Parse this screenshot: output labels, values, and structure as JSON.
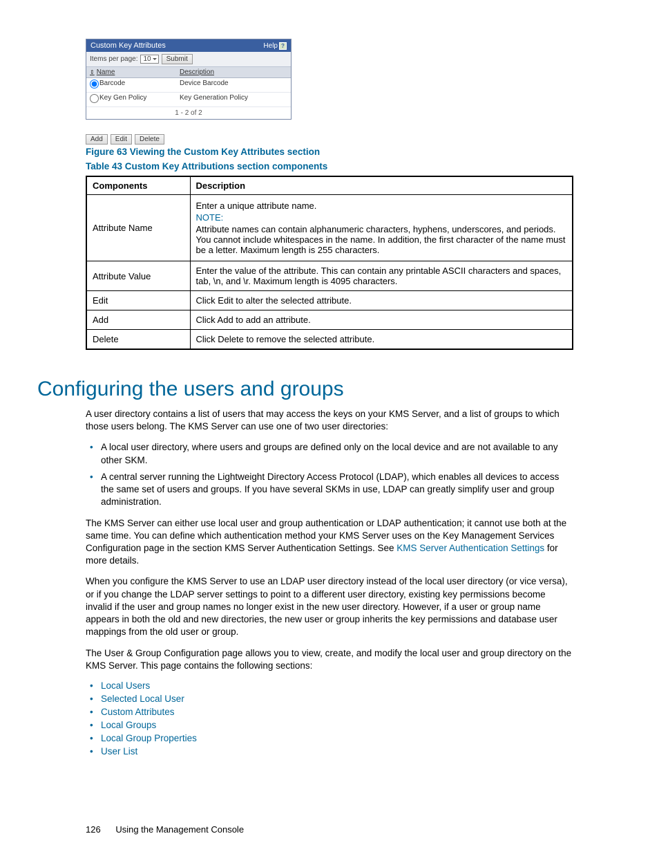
{
  "panel": {
    "title": "Custom Key Attributes",
    "help_label": "Help",
    "items_label": "Items per page:",
    "items_value": "10",
    "submit_label": "Submit",
    "col_name": "Name",
    "col_desc": "Description",
    "rows": [
      {
        "name": "Barcode",
        "desc": "Device Barcode",
        "selected": true
      },
      {
        "name": "Key Gen Policy",
        "desc": "Key Generation Policy",
        "selected": false
      }
    ],
    "pager": "1 - 2 of 2",
    "btn_add": "Add",
    "btn_edit": "Edit",
    "btn_delete": "Delete"
  },
  "figure_caption": "Figure 63 Viewing the Custom Key Attributes section",
  "table_caption": "Table 43 Custom Key Attributions section components",
  "table": {
    "head_components": "Components",
    "head_description": "Description",
    "rows": {
      "r1_c1": "Attribute Name",
      "r1_intro": "Enter a unique attribute name.",
      "r1_note": "NOTE:",
      "r1_body": "Attribute names can contain alphanumeric characters, hyphens, underscores, and periods. You cannot include whitespaces in the name. In addition, the first character of the name must be a letter. Maximum length is 255 characters.",
      "r2_c1": "Attribute Value",
      "r2_body": "Enter the value of the attribute. This can contain any printable ASCII characters and spaces, tab, \\n, and \\r. Maximum length is 4095 characters.",
      "r3_c1": "Edit",
      "r3_body": "Click Edit to alter the selected attribute.",
      "r4_c1": "Add",
      "r4_body": "Click Add to add an attribute.",
      "r5_c1": "Delete",
      "r5_body": "Click Delete to remove the selected attribute."
    }
  },
  "heading": "Configuring the users and groups",
  "para1": "A user directory contains a list of users that may access the keys on your KMS Server, and a list of groups to which those users belong. The KMS Server can use one of two user directories:",
  "bullets1": {
    "b1": "A local user directory, where users and groups are defined only on the local device and are not available to any other SKM.",
    "b2": "A central server running the Lightweight Directory Access Protocol (LDAP), which enables all devices to access the same set of users and groups. If you have several SKMs in use, LDAP can greatly simplify user and group administration."
  },
  "para2_a": "The KMS Server can either use local user and group authentication or LDAP authentication; it cannot use both at the same time. You can define which authentication method your KMS Server uses on the Key Management Services Configuration page in the section KMS Server Authentication Settings. See ",
  "para2_link": "KMS Server Authentication Settings",
  "para2_b": " for more details.",
  "para3": "When you configure the KMS Server to use an LDAP user directory instead of the local user directory (or vice versa), or if you change the LDAP server settings to point to a different user directory, existing key permissions become invalid if the user and group names no longer exist in the new user directory. However, if a user or group name appears in both the old and new directories, the new user or group inherits the key permissions and database user mappings from the old user or group.",
  "para4": "The User & Group Configuration page allows you to view, create, and modify the local user and group directory on the KMS Server. This page contains the following sections:",
  "links": {
    "l1": "Local Users",
    "l2": "Selected Local User",
    "l3": "Custom Attributes",
    "l4": "Local Groups",
    "l5": "Local Group Properties",
    "l6": "User List"
  },
  "footer": {
    "page": "126",
    "text": "Using the Management Console"
  }
}
